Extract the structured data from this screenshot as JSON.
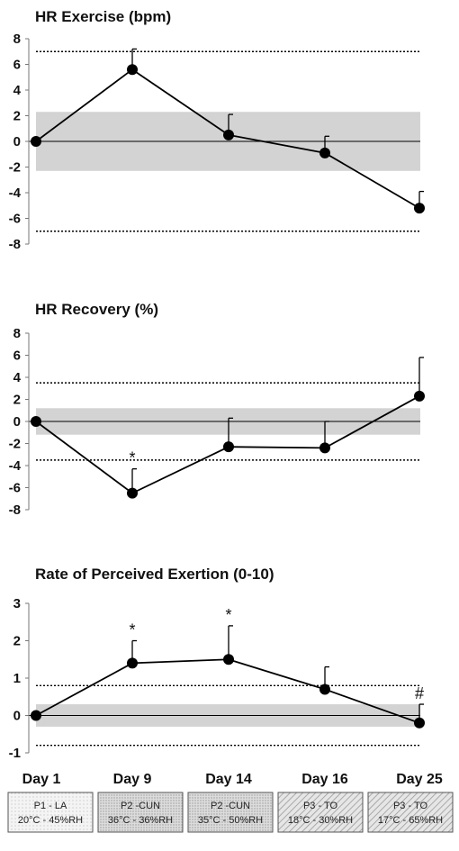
{
  "x_labels": [
    "Day 1",
    "Day 9",
    "Day 14",
    "Day 16",
    "Day 25"
  ],
  "conditions": [
    {
      "line1": "P1 - LA",
      "line2": "20°C - 45%RH",
      "pattern": "dots"
    },
    {
      "line1": "P2 -CUN",
      "line2": "36°C - 36%RH",
      "pattern": "dense"
    },
    {
      "line1": "P2 -CUN",
      "line2": "35°C - 50%RH",
      "pattern": "dense"
    },
    {
      "line1": "P3 - TO",
      "line2": "18°C - 30%RH",
      "pattern": "hatch"
    },
    {
      "line1": "P3 - TO",
      "line2": "17°C - 65%RH",
      "pattern": "hatch"
    }
  ],
  "chart_data": [
    {
      "type": "line",
      "title": "HR Exercise (bpm)",
      "categories": [
        "Day 1",
        "Day 9",
        "Day 14",
        "Day 16",
        "Day 25"
      ],
      "values": [
        0,
        5.6,
        0.5,
        -0.9,
        -5.2
      ],
      "error_upper": [
        0,
        1.6,
        1.6,
        1.3,
        1.3
      ],
      "ylim": [
        -8,
        8
      ],
      "yticks": [
        8,
        6,
        4,
        2,
        0,
        -2,
        -4,
        -6,
        -8
      ],
      "shaded_band": [
        -2.3,
        2.3
      ],
      "dotted_lines": [
        7,
        -7
      ],
      "annotations": [],
      "colors": {
        "line": "#000000",
        "band": "#d3d3d3"
      }
    },
    {
      "type": "line",
      "title": "HR Recovery (%)",
      "categories": [
        "Day 1",
        "Day 9",
        "Day 14",
        "Day 16",
        "Day 25"
      ],
      "values": [
        0,
        -6.5,
        -2.3,
        -2.4,
        2.3
      ],
      "error_upper": [
        0,
        2.2,
        2.6,
        2.4,
        3.5
      ],
      "ylim": [
        -8,
        8
      ],
      "yticks": [
        8,
        6,
        4,
        2,
        0,
        -2,
        -4,
        -6,
        -8
      ],
      "shaded_band": [
        -1.2,
        1.2
      ],
      "dotted_lines": [
        3.5,
        -3.5
      ],
      "annotations": [
        {
          "index": 1,
          "text": "*"
        }
      ],
      "colors": {
        "line": "#000000",
        "band": "#d3d3d3"
      }
    },
    {
      "type": "line",
      "title": "Rate of Perceived Exertion (0-10)",
      "categories": [
        "Day 1",
        "Day 9",
        "Day 14",
        "Day 16",
        "Day 25"
      ],
      "values": [
        0,
        1.4,
        1.5,
        0.7,
        -0.2
      ],
      "error_upper": [
        0,
        0.6,
        0.9,
        0.6,
        0.5
      ],
      "ylim": [
        -1,
        3
      ],
      "yticks": [
        3,
        2,
        1,
        0,
        -1
      ],
      "shaded_band": [
        -0.3,
        0.3
      ],
      "dotted_lines": [
        0.8,
        -0.8
      ],
      "annotations": [
        {
          "index": 1,
          "text": "*"
        },
        {
          "index": 2,
          "text": "*"
        },
        {
          "index": 4,
          "text": "#"
        }
      ],
      "colors": {
        "line": "#000000",
        "band": "#d3d3d3"
      }
    }
  ]
}
